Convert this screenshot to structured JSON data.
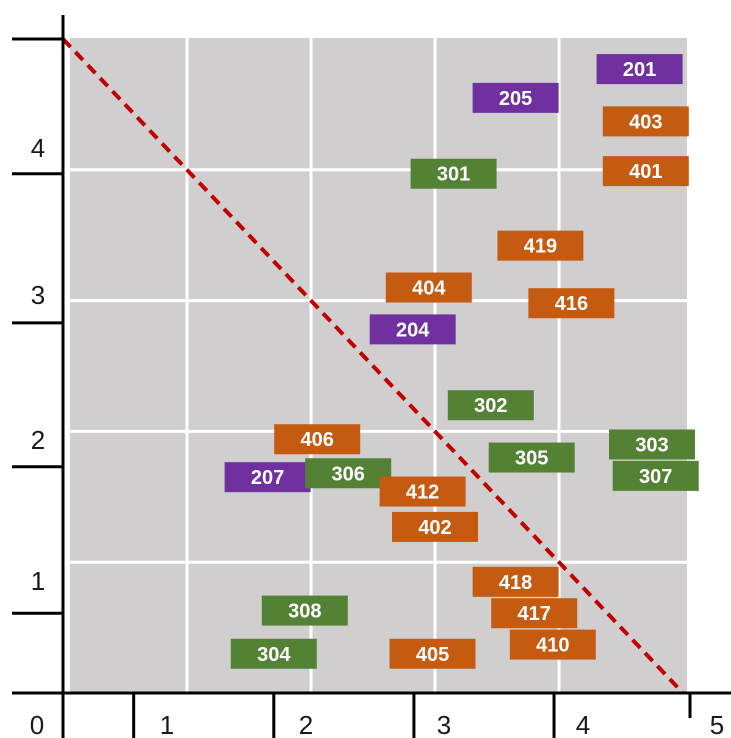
{
  "chart_data": {
    "type": "scatter",
    "title": "",
    "xlabel": "",
    "ylabel": "",
    "xlim": [
      0,
      5
    ],
    "ylim": [
      0,
      5
    ],
    "grid": true,
    "x_ticks": [
      "0",
      "1",
      "2",
      "3",
      "4",
      "5"
    ],
    "y_ticks": [
      "1",
      "2",
      "3",
      "4"
    ],
    "reference_line": {
      "style": "dashed",
      "from": [
        0,
        5
      ],
      "to": [
        5,
        0
      ]
    },
    "colors": {
      "purple": "#7030a0",
      "orange": "#c55a11",
      "green": "#548235",
      "plot_background": "#d0cece",
      "grid": "#ffffff",
      "diagonal": "#c00000",
      "axis": "#000000"
    },
    "points": [
      {
        "label": "201",
        "x": 4.65,
        "y": 4.77,
        "color": "purple"
      },
      {
        "label": "205",
        "x": 3.65,
        "y": 4.55,
        "color": "purple"
      },
      {
        "label": "403",
        "x": 4.7,
        "y": 4.37,
        "color": "orange"
      },
      {
        "label": "401",
        "x": 4.7,
        "y": 3.99,
        "color": "orange"
      },
      {
        "label": "301",
        "x": 3.15,
        "y": 3.97,
        "color": "green"
      },
      {
        "label": "419",
        "x": 3.85,
        "y": 3.42,
        "color": "orange"
      },
      {
        "label": "404",
        "x": 2.95,
        "y": 3.1,
        "color": "orange"
      },
      {
        "label": "416",
        "x": 4.1,
        "y": 2.98,
        "color": "orange"
      },
      {
        "label": "204",
        "x": 2.82,
        "y": 2.78,
        "color": "purple"
      },
      {
        "label": "302",
        "x": 3.45,
        "y": 2.2,
        "color": "green"
      },
      {
        "label": "406",
        "x": 2.05,
        "y": 1.94,
        "color": "orange"
      },
      {
        "label": "303",
        "x": 4.75,
        "y": 1.9,
        "color": "green"
      },
      {
        "label": "305",
        "x": 3.78,
        "y": 1.8,
        "color": "green"
      },
      {
        "label": "207",
        "x": 1.65,
        "y": 1.65,
        "color": "purple"
      },
      {
        "label": "306",
        "x": 2.3,
        "y": 1.68,
        "color": "green"
      },
      {
        "label": "307",
        "x": 4.78,
        "y": 1.66,
        "color": "green"
      },
      {
        "label": "412",
        "x": 2.9,
        "y": 1.54,
        "color": "orange"
      },
      {
        "label": "402",
        "x": 3.0,
        "y": 1.27,
        "color": "orange"
      },
      {
        "label": "418",
        "x": 3.65,
        "y": 0.85,
        "color": "orange"
      },
      {
        "label": "308",
        "x": 1.95,
        "y": 0.63,
        "color": "green"
      },
      {
        "label": "417",
        "x": 3.8,
        "y": 0.61,
        "color": "orange"
      },
      {
        "label": "410",
        "x": 3.95,
        "y": 0.37,
        "color": "orange"
      },
      {
        "label": "304",
        "x": 1.7,
        "y": 0.3,
        "color": "green"
      },
      {
        "label": "405",
        "x": 2.98,
        "y": 0.3,
        "color": "orange"
      }
    ]
  }
}
